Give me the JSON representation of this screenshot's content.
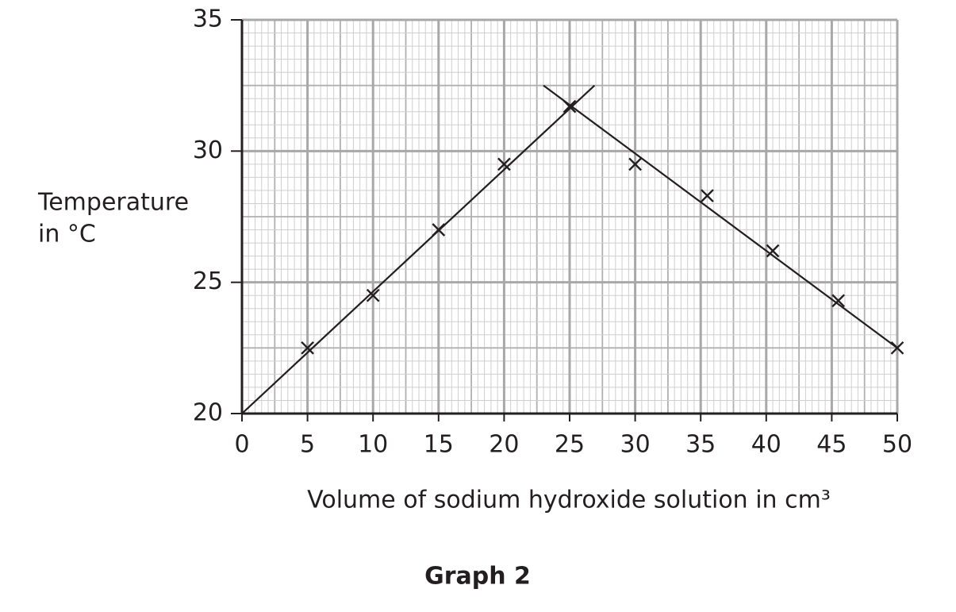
{
  "chart_data": {
    "type": "scatter",
    "caption": "Graph 2",
    "xlabel": "Volume of sodium hydroxide solution in cm³",
    "ylabel": [
      "Temperature",
      "in °C"
    ],
    "xlim": [
      0,
      50
    ],
    "ylim": [
      20,
      35
    ],
    "xticks": [
      0,
      5,
      10,
      15,
      20,
      25,
      30,
      35,
      40,
      45,
      50
    ],
    "yticks": [
      20,
      25,
      30,
      35
    ],
    "grid": true,
    "series": [
      {
        "type": "scatter",
        "marker": "x",
        "color": "#231f20",
        "x": [
          5,
          10,
          15,
          20,
          25,
          30,
          35.5,
          40.5,
          45.5,
          50
        ],
        "values": [
          22.5,
          24.5,
          27,
          29.5,
          31.7,
          29.5,
          28.3,
          26.2,
          24.3,
          22.5
        ]
      },
      {
        "type": "line",
        "color": "#231f20",
        "x": [
          0,
          26.9
        ],
        "values": [
          20,
          32.5
        ]
      },
      {
        "type": "line",
        "color": "#231f20",
        "x": [
          23,
          50
        ],
        "values": [
          32.5,
          22.5
        ]
      }
    ]
  }
}
